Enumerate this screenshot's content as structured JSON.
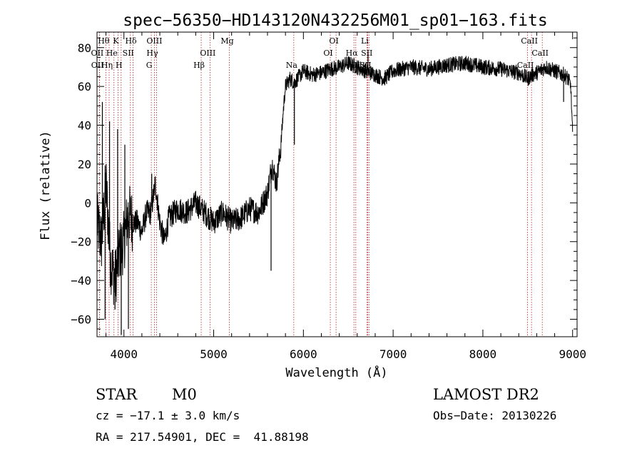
{
  "chart_data": {
    "type": "line",
    "title": "spec−56350−HD143120N432256M01_sp01−163.fits",
    "xlabel": "Wavelength (Å)",
    "ylabel": "Flux (relative)",
    "xlim": [
      3700,
      9050
    ],
    "ylim": [
      -69,
      88
    ],
    "x_ticks": [
      4000,
      5000,
      6000,
      7000,
      8000,
      9000
    ],
    "y_ticks": [
      -60,
      -40,
      -20,
      0,
      20,
      40,
      60,
      80
    ],
    "series": [
      {
        "name": "flux",
        "x": [
          3700,
          3750,
          3800,
          3850,
          3900,
          3950,
          4000,
          4050,
          4100,
          4150,
          4200,
          4250,
          4300,
          4350,
          4400,
          4450,
          4500,
          4600,
          4700,
          4800,
          4900,
          5000,
          5100,
          5200,
          5300,
          5400,
          5500,
          5600,
          5650,
          5700,
          5750,
          5780,
          5800,
          5850,
          5900,
          5950,
          6000,
          6100,
          6200,
          6300,
          6400,
          6500,
          6600,
          6700,
          6800,
          6900,
          7000,
          7200,
          7400,
          7600,
          7800,
          8000,
          8200,
          8400,
          8500,
          8550,
          8600,
          8700,
          8800,
          8900,
          8950,
          8980,
          9000
        ],
        "y": [
          -10,
          -20,
          10,
          -30,
          -40,
          -25,
          -20,
          -5,
          -10,
          -10,
          -15,
          -5,
          -5,
          10,
          -10,
          -20,
          -8,
          -3,
          -5,
          0,
          -5,
          -10,
          -5,
          -10,
          -8,
          -3,
          -5,
          5,
          20,
          10,
          30,
          50,
          60,
          64,
          62,
          65,
          68,
          66,
          67,
          69,
          70,
          72,
          70,
          68,
          66,
          64,
          68,
          70,
          69,
          71,
          72,
          70,
          69,
          67,
          64,
          66,
          67,
          70,
          68,
          66,
          64,
          60,
          35
        ]
      }
    ],
    "spikes": [
      {
        "x": 3760,
        "y": 52
      },
      {
        "x": 3790,
        "y": -60
      },
      {
        "x": 3840,
        "y": 42
      },
      {
        "x": 3900,
        "y": -55
      },
      {
        "x": 3930,
        "y": 38
      },
      {
        "x": 3970,
        "y": -68
      },
      {
        "x": 4010,
        "y": 30
      },
      {
        "x": 4050,
        "y": -65
      },
      {
        "x": 4310,
        "y": 15
      },
      {
        "x": 5640,
        "y": -35
      },
      {
        "x": 5900,
        "y": 30
      },
      {
        "x": 6720,
        "y": 78
      },
      {
        "x": 8900,
        "y": 52
      }
    ],
    "lines": [
      {
        "label": "Hθ",
        "x": 3798,
        "row": 0
      },
      {
        "label": "OII",
        "x": 3727,
        "row": 1
      },
      {
        "label": "OII",
        "x": 3729,
        "row": 2
      },
      {
        "label": "K",
        "x": 3934,
        "row": 0
      },
      {
        "label": "He",
        "x": 3889,
        "row": 1
      },
      {
        "label": "Hη",
        "x": 3835,
        "row": 2
      },
      {
        "label": "Hδ",
        "x": 4102,
        "row": 0
      },
      {
        "label": "SII",
        "x": 4072,
        "row": 1
      },
      {
        "label": "H",
        "x": 3969,
        "row": 2
      },
      {
        "label": "OIII",
        "x": 4363,
        "row": 0
      },
      {
        "label": "Hγ",
        "x": 4340,
        "row": 1
      },
      {
        "label": "G",
        "x": 4305,
        "row": 2
      },
      {
        "label": "OIII",
        "x": 4959,
        "row": 1
      },
      {
        "label": "Hβ",
        "x": 4861,
        "row": 2
      },
      {
        "label": "Mg",
        "x": 5175,
        "row": 0
      },
      {
        "label": "Na",
        "x": 5893,
        "row": 2
      },
      {
        "label": "OI",
        "x": 6364,
        "row": 0
      },
      {
        "label": "OI",
        "x": 6300,
        "row": 1
      },
      {
        "label": "Li",
        "x": 6708,
        "row": 0
      },
      {
        "label": "Hα",
        "x": 6563,
        "row": 1
      },
      {
        "label": "NII",
        "x": 6584,
        "row": 2
      },
      {
        "label": "SII",
        "x": 6731,
        "row": 1
      },
      {
        "label": "SII",
        "x": 6717,
        "row": 2
      },
      {
        "label": "CaII",
        "x": 8542,
        "row": 0
      },
      {
        "label": "CaII",
        "x": 8662,
        "row": 1
      },
      {
        "label": "CaII",
        "x": 8498,
        "row": 2
      }
    ]
  },
  "info": {
    "class": "STAR",
    "subclass": "M0",
    "survey": "LAMOST DR2",
    "cz": "cz = −17.1 ± 3.0 km/s",
    "obs_date": "Obs−Date: 20130226",
    "radec": "RA = 217.54901, DEC =  41.88198"
  }
}
